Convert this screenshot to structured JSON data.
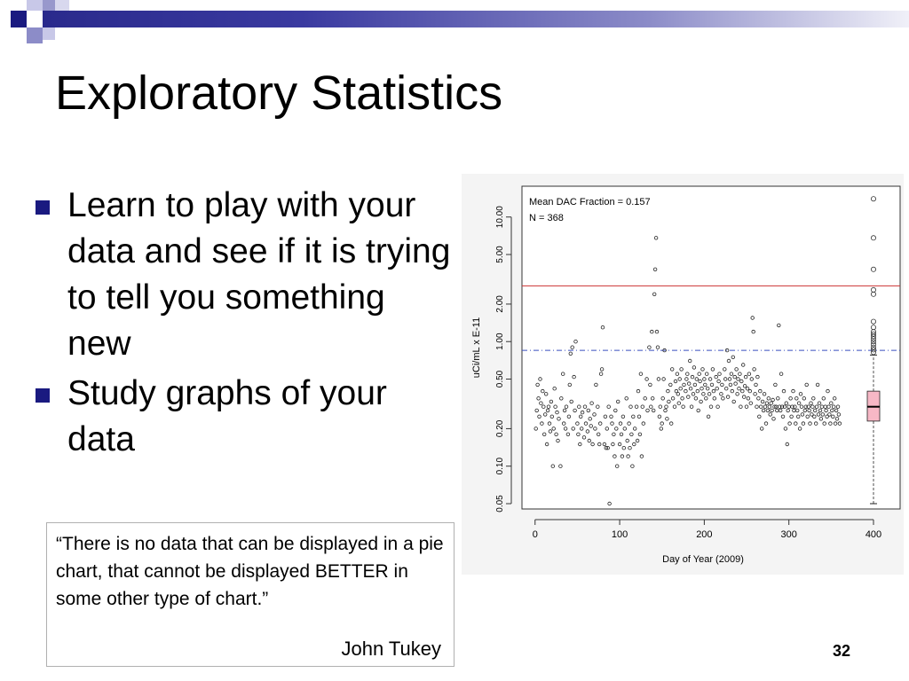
{
  "slide": {
    "title": "Exploratory Statistics",
    "bullets": [
      "Learn to play with your data and see if it is trying to tell you something new",
      "Study graphs of your data"
    ],
    "quote": {
      "text": "“There is no data that can be displayed in a pie chart, that cannot be displayed BETTER in some other type of chart.”",
      "author": "John Tukey"
    },
    "slide_number": "32"
  },
  "theme": {
    "accent": "#1a1a80",
    "ref_line": "#cc3333",
    "mean_line": "#3a4fbf",
    "box_fill": "#f7b8c6"
  },
  "chart_data": {
    "type": "scatter",
    "title": "",
    "annotations": [
      "Mean DAC Fraction = 0.157",
      "N = 368"
    ],
    "xlabel": "Day of Year (2009)",
    "ylabel": "uCi/mL x E-11",
    "xlim": [
      -5,
      400
    ],
    "x_ticks": [
      0,
      100,
      200,
      300,
      400
    ],
    "y_scale": "log",
    "ylim": [
      0.05,
      15
    ],
    "y_ticks": [
      0.05,
      0.1,
      0.2,
      0.5,
      1.0,
      2.0,
      5.0,
      10.0
    ],
    "y_tick_labels": [
      "0.05",
      "0.10",
      "0.20",
      "0.50",
      "1.00",
      "2.00",
      "5.00",
      "10.00"
    ],
    "reference_line_y": 2.8,
    "dashed_line_y": 0.85,
    "boxplot": {
      "x": 400,
      "min": 0.05,
      "q1": 0.23,
      "median": 0.3,
      "q3": 0.4,
      "whisker_high": 0.78,
      "outliers": [
        0.82,
        0.86,
        0.9,
        0.95,
        1.0,
        1.05,
        1.1,
        1.15,
        1.2,
        1.3,
        1.45,
        2.4,
        2.6,
        3.8,
        6.8,
        14
      ]
    },
    "points": [
      [
        1,
        0.2
      ],
      [
        2,
        0.28
      ],
      [
        3,
        0.45
      ],
      [
        4,
        0.35
      ],
      [
        5,
        0.25
      ],
      [
        6,
        0.5
      ],
      [
        7,
        0.32
      ],
      [
        8,
        0.22
      ],
      [
        9,
        0.4
      ],
      [
        10,
        0.3
      ],
      [
        11,
        0.18
      ],
      [
        12,
        0.26
      ],
      [
        13,
        0.38
      ],
      [
        14,
        0.15
      ],
      [
        15,
        0.28
      ],
      [
        16,
        0.3
      ],
      [
        17,
        0.22
      ],
      [
        18,
        0.19
      ],
      [
        19,
        0.33
      ],
      [
        20,
        0.25
      ],
      [
        21,
        0.1
      ],
      [
        22,
        0.2
      ],
      [
        23,
        0.42
      ],
      [
        24,
        0.3
      ],
      [
        25,
        0.18
      ],
      [
        26,
        0.27
      ],
      [
        27,
        0.16
      ],
      [
        28,
        0.24
      ],
      [
        30,
        0.1
      ],
      [
        31,
        0.35
      ],
      [
        33,
        0.55
      ],
      [
        34,
        0.22
      ],
      [
        35,
        0.28
      ],
      [
        36,
        0.2
      ],
      [
        37,
        0.3
      ],
      [
        39,
        0.18
      ],
      [
        40,
        0.25
      ],
      [
        41,
        0.45
      ],
      [
        42,
        0.8
      ],
      [
        43,
        0.33
      ],
      [
        44,
        0.9
      ],
      [
        45,
        0.2
      ],
      [
        46,
        0.52
      ],
      [
        47,
        0.28
      ],
      [
        48,
        1.0
      ],
      [
        50,
        0.22
      ],
      [
        51,
        0.18
      ],
      [
        52,
        0.3
      ],
      [
        53,
        0.15
      ],
      [
        54,
        0.25
      ],
      [
        55,
        0.2
      ],
      [
        56,
        0.27
      ],
      [
        58,
        0.17
      ],
      [
        59,
        0.3
      ],
      [
        60,
        0.22
      ],
      [
        62,
        0.19
      ],
      [
        63,
        0.28
      ],
      [
        64,
        0.16
      ],
      [
        65,
        0.24
      ],
      [
        66,
        0.21
      ],
      [
        67,
        0.32
      ],
      [
        68,
        0.15
      ],
      [
        70,
        0.26
      ],
      [
        71,
        0.2
      ],
      [
        72,
        0.45
      ],
      [
        74,
        0.3
      ],
      [
        75,
        0.18
      ],
      [
        76,
        0.15
      ],
      [
        77,
        0.22
      ],
      [
        78,
        0.55
      ],
      [
        79,
        0.6
      ],
      [
        80,
        1.3
      ],
      [
        82,
        0.15
      ],
      [
        83,
        0.25
      ],
      [
        84,
        0.14
      ],
      [
        85,
        0.2
      ],
      [
        86,
        0.14
      ],
      [
        87,
        0.3
      ],
      [
        88,
        0.05
      ],
      [
        90,
        0.25
      ],
      [
        91,
        0.22
      ],
      [
        92,
        0.15
      ],
      [
        93,
        0.18
      ],
      [
        94,
        0.12
      ],
      [
        95,
        0.28
      ],
      [
        96,
        0.2
      ],
      [
        97,
        0.1
      ],
      [
        98,
        0.33
      ],
      [
        100,
        0.15
      ],
      [
        101,
        0.22
      ],
      [
        102,
        0.18
      ],
      [
        103,
        0.12
      ],
      [
        104,
        0.25
      ],
      [
        105,
        0.14
      ],
      [
        106,
        0.2
      ],
      [
        108,
        0.35
      ],
      [
        109,
        0.16
      ],
      [
        110,
        0.12
      ],
      [
        111,
        0.22
      ],
      [
        112,
        0.14
      ],
      [
        113,
        0.3
      ],
      [
        114,
        0.18
      ],
      [
        115,
        0.1
      ],
      [
        116,
        0.25
      ],
      [
        117,
        0.15
      ],
      [
        118,
        0.2
      ],
      [
        120,
        0.3
      ],
      [
        121,
        0.16
      ],
      [
        122,
        0.4
      ],
      [
        123,
        0.25
      ],
      [
        124,
        0.18
      ],
      [
        125,
        0.55
      ],
      [
        126,
        0.12
      ],
      [
        127,
        0.3
      ],
      [
        128,
        0.22
      ],
      [
        130,
        0.35
      ],
      [
        132,
        0.5
      ],
      [
        133,
        0.28
      ],
      [
        135,
        0.9
      ],
      [
        136,
        0.45
      ],
      [
        137,
        0.3
      ],
      [
        138,
        1.2
      ],
      [
        139,
        0.35
      ],
      [
        140,
        0.28
      ],
      [
        141,
        2.4
      ],
      [
        142,
        3.8
      ],
      [
        143,
        6.8
      ],
      [
        144,
        1.2
      ],
      [
        145,
        0.9
      ],
      [
        146,
        0.5
      ],
      [
        147,
        0.25
      ],
      [
        148,
        0.3
      ],
      [
        149,
        0.2
      ],
      [
        150,
        0.22
      ],
      [
        151,
        0.35
      ],
      [
        152,
        0.5
      ],
      [
        153,
        0.85
      ],
      [
        154,
        0.28
      ],
      [
        155,
        0.3
      ],
      [
        156,
        0.24
      ],
      [
        157,
        0.4
      ],
      [
        158,
        0.33
      ],
      [
        160,
        0.45
      ],
      [
        161,
        0.22
      ],
      [
        162,
        0.6
      ],
      [
        163,
        0.35
      ],
      [
        165,
        0.3
      ],
      [
        166,
        0.48
      ],
      [
        167,
        0.4
      ],
      [
        168,
        0.55
      ],
      [
        169,
        0.38
      ],
      [
        170,
        0.32
      ],
      [
        171,
        0.5
      ],
      [
        172,
        0.42
      ],
      [
        173,
        0.6
      ],
      [
        174,
        0.35
      ],
      [
        175,
        0.3
      ],
      [
        176,
        0.45
      ],
      [
        178,
        0.4
      ],
      [
        179,
        0.5
      ],
      [
        180,
        0.55
      ],
      [
        181,
        0.36
      ],
      [
        182,
        0.46
      ],
      [
        183,
        0.7
      ],
      [
        184,
        0.42
      ],
      [
        185,
        0.3
      ],
      [
        186,
        0.52
      ],
      [
        187,
        0.38
      ],
      [
        188,
        0.62
      ],
      [
        189,
        0.45
      ],
      [
        190,
        0.35
      ],
      [
        191,
        0.5
      ],
      [
        192,
        0.4
      ],
      [
        193,
        0.28
      ],
      [
        194,
        0.55
      ],
      [
        195,
        0.48
      ],
      [
        196,
        0.33
      ],
      [
        197,
        0.42
      ],
      [
        198,
        0.6
      ],
      [
        199,
        0.38
      ],
      [
        200,
        0.5
      ],
      [
        201,
        0.45
      ],
      [
        202,
        0.35
      ],
      [
        203,
        0.55
      ],
      [
        204,
        0.42
      ],
      [
        205,
        0.25
      ],
      [
        206,
        0.38
      ],
      [
        207,
        0.5
      ],
      [
        208,
        0.3
      ],
      [
        209,
        0.45
      ],
      [
        210,
        0.6
      ],
      [
        211,
        0.4
      ],
      [
        212,
        0.35
      ],
      [
        214,
        0.52
      ],
      [
        215,
        0.42
      ],
      [
        216,
        0.3
      ],
      [
        217,
        0.48
      ],
      [
        218,
        0.55
      ],
      [
        220,
        0.38
      ],
      [
        221,
        0.45
      ],
      [
        222,
        0.35
      ],
      [
        224,
        0.6
      ],
      [
        225,
        0.5
      ],
      [
        226,
        0.42
      ],
      [
        227,
        0.85
      ],
      [
        228,
        0.36
      ],
      [
        229,
        0.7
      ],
      [
        230,
        0.5
      ],
      [
        231,
        0.45
      ],
      [
        232,
        0.55
      ],
      [
        233,
        0.4
      ],
      [
        234,
        0.75
      ],
      [
        235,
        0.33
      ],
      [
        236,
        0.52
      ],
      [
        237,
        0.46
      ],
      [
        238,
        0.6
      ],
      [
        239,
        0.38
      ],
      [
        240,
        0.5
      ],
      [
        241,
        0.42
      ],
      [
        242,
        0.55
      ],
      [
        243,
        0.3
      ],
      [
        244,
        0.48
      ],
      [
        245,
        0.4
      ],
      [
        246,
        0.65
      ],
      [
        247,
        0.36
      ],
      [
        248,
        0.44
      ],
      [
        249,
        0.52
      ],
      [
        250,
        0.3
      ],
      [
        251,
        0.42
      ],
      [
        252,
        0.35
      ],
      [
        253,
        0.55
      ],
      [
        254,
        0.4
      ],
      [
        255,
        0.32
      ],
      [
        256,
        0.5
      ],
      [
        257,
        1.55
      ],
      [
        258,
        1.2
      ],
      [
        259,
        0.6
      ],
      [
        260,
        0.38
      ],
      [
        261,
        0.45
      ],
      [
        262,
        0.3
      ],
      [
        263,
        0.52
      ],
      [
        264,
        0.35
      ],
      [
        265,
        0.25
      ],
      [
        266,
        0.4
      ],
      [
        267,
        0.3
      ],
      [
        268,
        0.2
      ],
      [
        269,
        0.33
      ],
      [
        270,
        0.28
      ],
      [
        271,
        0.38
      ],
      [
        272,
        0.3
      ],
      [
        273,
        0.22
      ],
      [
        274,
        0.32
      ],
      [
        275,
        0.28
      ],
      [
        276,
        0.35
      ],
      [
        277,
        0.3
      ],
      [
        278,
        0.26
      ],
      [
        279,
        0.32
      ],
      [
        280,
        0.28
      ],
      [
        281,
        0.34
      ],
      [
        282,
        0.24
      ],
      [
        283,
        0.3
      ],
      [
        284,
        0.45
      ],
      [
        285,
        0.3
      ],
      [
        286,
        0.28
      ],
      [
        287,
        0.35
      ],
      [
        288,
        1.35
      ],
      [
        289,
        0.3
      ],
      [
        290,
        0.28
      ],
      [
        291,
        0.55
      ],
      [
        292,
        0.3
      ],
      [
        293,
        0.25
      ],
      [
        294,
        0.4
      ],
      [
        295,
        0.3
      ],
      [
        296,
        0.2
      ],
      [
        297,
        0.32
      ],
      [
        298,
        0.15
      ],
      [
        299,
        0.28
      ],
      [
        300,
        0.3
      ],
      [
        301,
        0.22
      ],
      [
        302,
        0.35
      ],
      [
        303,
        0.25
      ],
      [
        304,
        0.3
      ],
      [
        305,
        0.4
      ],
      [
        306,
        0.28
      ],
      [
        307,
        0.3
      ],
      [
        308,
        0.22
      ],
      [
        309,
        0.35
      ],
      [
        310,
        0.28
      ],
      [
        311,
        0.25
      ],
      [
        312,
        0.32
      ],
      [
        313,
        0.2
      ],
      [
        314,
        0.38
      ],
      [
        315,
        0.3
      ],
      [
        316,
        0.26
      ],
      [
        317,
        0.22
      ],
      [
        318,
        0.35
      ],
      [
        319,
        0.28
      ],
      [
        320,
        0.3
      ],
      [
        321,
        0.45
      ],
      [
        322,
        0.25
      ],
      [
        323,
        0.3
      ],
      [
        324,
        0.28
      ],
      [
        325,
        0.22
      ],
      [
        326,
        0.32
      ],
      [
        327,
        0.26
      ],
      [
        328,
        0.3
      ],
      [
        329,
        0.35
      ],
      [
        330,
        0.25
      ],
      [
        331,
        0.28
      ],
      [
        332,
        0.22
      ],
      [
        333,
        0.3
      ],
      [
        334,
        0.45
      ],
      [
        335,
        0.26
      ],
      [
        336,
        0.32
      ],
      [
        337,
        0.28
      ],
      [
        338,
        0.24
      ],
      [
        339,
        0.3
      ],
      [
        340,
        0.26
      ],
      [
        341,
        0.35
      ],
      [
        342,
        0.22
      ],
      [
        343,
        0.3
      ],
      [
        344,
        0.28
      ],
      [
        345,
        0.25
      ],
      [
        346,
        0.4
      ],
      [
        347,
        0.3
      ],
      [
        348,
        0.26
      ],
      [
        349,
        0.22
      ],
      [
        350,
        0.32
      ],
      [
        351,
        0.28
      ],
      [
        352,
        0.25
      ],
      [
        353,
        0.3
      ],
      [
        354,
        0.35
      ],
      [
        355,
        0.22
      ],
      [
        356,
        0.28
      ],
      [
        357,
        0.24
      ],
      [
        358,
        0.3
      ],
      [
        359,
        0.26
      ],
      [
        360,
        0.22
      ]
    ]
  }
}
